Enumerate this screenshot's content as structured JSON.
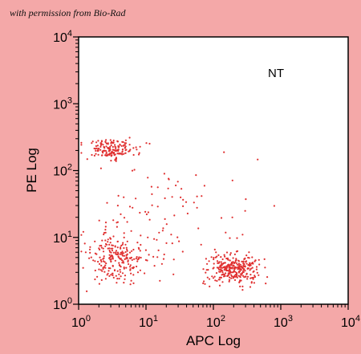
{
  "credit": "with permission from Bio-Rad",
  "chart_data": {
    "type": "scatter",
    "xlabel": "APC Log",
    "ylabel": "PE Log",
    "annotation": "NT",
    "x_scale": "log",
    "y_scale": "log",
    "xlim": [
      1,
      10000
    ],
    "ylim": [
      1,
      10000
    ],
    "x_ticks": [
      1,
      10,
      100,
      1000,
      10000
    ],
    "y_ticks": [
      1,
      10,
      100,
      1000,
      10000
    ],
    "tick_labels": [
      "10^0",
      "10^1",
      "10^2",
      "10^3",
      "10^4"
    ],
    "grid": false,
    "marker_color": "#e03030",
    "plot_background": "#ffffff",
    "page_background": "#f4a8a8",
    "populations": [
      {
        "center_x": 3.0,
        "center_y": 210,
        "count": 170
      },
      {
        "center_x": 3.5,
        "center_y": 5.0,
        "count": 230
      },
      {
        "center_x": 200,
        "center_y": 3.4,
        "count": 300
      },
      {
        "center_x": 20,
        "center_y": 18,
        "count": 90
      }
    ]
  }
}
